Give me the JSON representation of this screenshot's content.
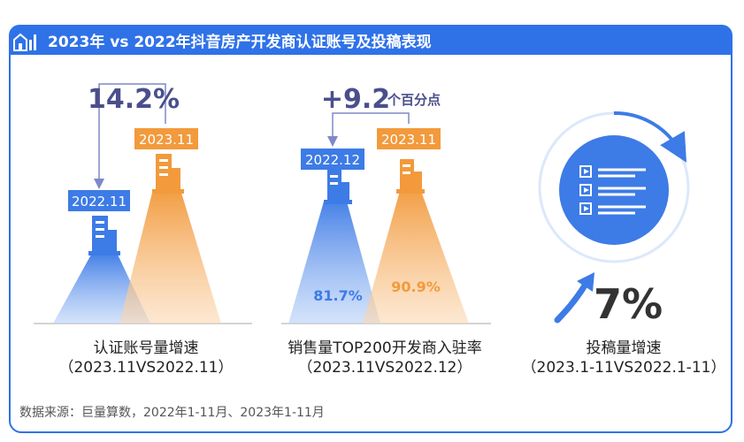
{
  "header": {
    "title": "2023年 vs 2022年抖音房产开发商认证账号及投稿表现"
  },
  "panels": [
    {
      "label": "认证账号量增速",
      "period": "（2023.11VS2022.11）"
    },
    {
      "label": "销售量TOP200开发商入驻率",
      "period": "（2023.11VS2022.12）"
    },
    {
      "label": "投稿量增速",
      "period": "（2023.1-11VS2022.1-11）"
    }
  ],
  "source": "数据来源：巨量算数，2022年1-11月、2023年1-11月",
  "colors": {
    "blue": "#3d7be6",
    "orange": "#f29a3c",
    "accent": "#2f72e8",
    "dark": "#4a4f8c"
  },
  "chart_data": [
    {
      "type": "bar",
      "categories": [
        "2022.11",
        "2023.11"
      ],
      "annotations": [
        "14.2%"
      ]
    },
    {
      "type": "bar",
      "categories": [
        "2022.12",
        "2023.11"
      ],
      "values": [
        81.7,
        90.9
      ],
      "data_labels": [
        "81.7%",
        "90.9%"
      ],
      "annotations": [
        "+9.2",
        "个百分点"
      ]
    },
    {
      "type": "table",
      "values": [
        7
      ],
      "data_labels": [
        "7%"
      ]
    }
  ]
}
